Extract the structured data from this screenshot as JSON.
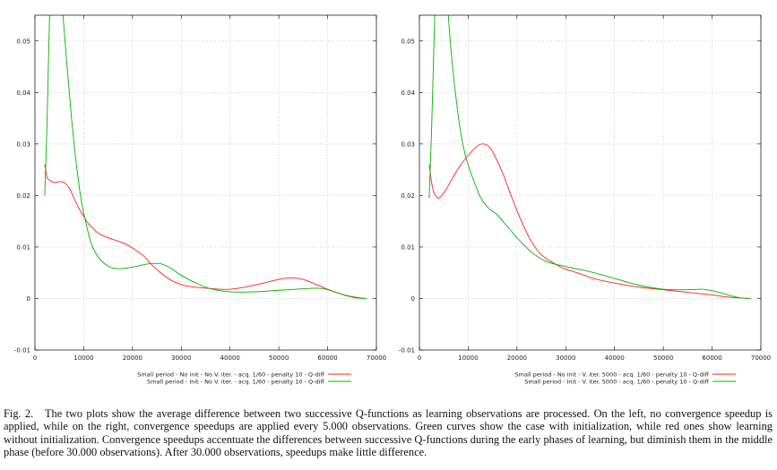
{
  "figure": {
    "caption_label": "Fig. 2.",
    "caption_text": "The two plots show the average difference between two successive Q-functions as learning observations are processed. On the left, no convergence speedup is applied, while on the right, convergence speedups are applied every 5.000 observations. Green curves show the case with initialization, while red ones show learning without initialization. Convergence speedups accentuate the differences between successive Q-functions during the early phases of learning, but diminish them in the middle phase (before 30.000 observations). After 30.000 observations, speedups make little difference."
  },
  "colors": {
    "red": "#ff1f1f",
    "green": "#00b400",
    "grid": "#b8b8b8",
    "axis": "#000000"
  },
  "chart_data": [
    {
      "type": "line",
      "title": "",
      "xlabel": "",
      "ylabel": "",
      "xlim": [
        0,
        70000
      ],
      "ylim": [
        -0.01,
        0.055
      ],
      "xticks": [
        0,
        10000,
        20000,
        30000,
        40000,
        50000,
        60000,
        70000
      ],
      "yticks": [
        -0.01,
        0,
        0.01,
        0.02,
        0.03,
        0.04,
        0.05
      ],
      "xtick_labels": [
        "0",
        "10000",
        "20000",
        "30000",
        "40000",
        "50000",
        "60000",
        "70000"
      ],
      "ytick_labels": [
        "-0.01",
        "0",
        "0.01",
        "0.02",
        "0.03",
        "0.04",
        "0.05"
      ],
      "grid": true,
      "legend_position": "bottom-right",
      "series": [
        {
          "name": "Small period - No init - No V. iter. - acq. 1/60 - penalty 10 - Q-diff",
          "color": "red",
          "x": [
            2000,
            2500,
            3000,
            4000,
            5000,
            6000,
            7000,
            8000,
            9000,
            10000,
            11000,
            13000,
            15000,
            18000,
            20000,
            22000,
            24000,
            26000,
            28000,
            30000,
            32000,
            35000,
            38000,
            40000,
            43000,
            46000,
            49000,
            51000,
            53000,
            55000,
            57000,
            60000,
            63000,
            66000,
            68000
          ],
          "y": [
            0.026,
            0.0235,
            0.023,
            0.0225,
            0.0227,
            0.0225,
            0.0215,
            0.0195,
            0.0175,
            0.016,
            0.0145,
            0.0127,
            0.0118,
            0.0108,
            0.0098,
            0.0085,
            0.0065,
            0.0048,
            0.0035,
            0.0027,
            0.0023,
            0.002,
            0.0018,
            0.0018,
            0.0022,
            0.0028,
            0.0035,
            0.0039,
            0.004,
            0.0037,
            0.003,
            0.0018,
            0.0008,
            0.0002,
            0.0
          ]
        },
        {
          "name": "Small period - Init - No V. iter. - acq. 1/60 - penalty 10 - Q-diff",
          "color": "green",
          "x": [
            2000,
            2500,
            3000,
            3500,
            4500,
            5500,
            6500,
            7500,
            8500,
            9500,
            10500,
            11500,
            13000,
            15000,
            17000,
            20000,
            22000,
            24000,
            26000,
            28000,
            30000,
            33000,
            36000,
            40000,
            45000,
            50000,
            55000,
            58000,
            60000,
            62000,
            64000,
            66000,
            68000
          ],
          "y": [
            0.02,
            0.035,
            0.055,
            0.07,
            0.072,
            0.058,
            0.046,
            0.035,
            0.026,
            0.019,
            0.0145,
            0.0108,
            0.008,
            0.0063,
            0.0058,
            0.0061,
            0.0065,
            0.0068,
            0.0067,
            0.0058,
            0.0045,
            0.003,
            0.0019,
            0.0013,
            0.0013,
            0.0016,
            0.0019,
            0.002,
            0.0017,
            0.0011,
            0.0005,
            0.0001,
            0.0
          ]
        }
      ]
    },
    {
      "type": "line",
      "title": "",
      "xlabel": "",
      "ylabel": "",
      "xlim": [
        0,
        70000
      ],
      "ylim": [
        -0.01,
        0.055
      ],
      "xticks": [
        0,
        10000,
        20000,
        30000,
        40000,
        50000,
        60000,
        70000
      ],
      "yticks": [
        -0.01,
        0,
        0.01,
        0.02,
        0.03,
        0.04,
        0.05
      ],
      "xtick_labels": [
        "0",
        "10000",
        "20000",
        "30000",
        "40000",
        "50000",
        "60000",
        "70000"
      ],
      "ytick_labels": [
        "-0.01",
        "0",
        "0.01",
        "0.02",
        "0.03",
        "0.04",
        "0.05"
      ],
      "grid": true,
      "legend_position": "bottom-right",
      "series": [
        {
          "name": "Small period - No init - V. iter. 5000 - acq. 1/60 - penalty 10 - Q-diff",
          "color": "red",
          "x": [
            2000,
            2500,
            3000,
            3500,
            4000,
            5000,
            6000,
            8000,
            10000,
            12000,
            13000,
            14000,
            15000,
            17000,
            19000,
            21000,
            23000,
            25000,
            28000,
            30000,
            33000,
            36000,
            40000,
            45000,
            50000,
            55000,
            60000,
            63000,
            66000,
            68000
          ],
          "y": [
            0.026,
            0.0225,
            0.0205,
            0.0197,
            0.0195,
            0.0205,
            0.022,
            0.0253,
            0.0278,
            0.0297,
            0.03,
            0.0297,
            0.0285,
            0.0245,
            0.0195,
            0.0148,
            0.011,
            0.0085,
            0.0066,
            0.0057,
            0.0048,
            0.0038,
            0.003,
            0.0022,
            0.0017,
            0.0012,
            0.0007,
            0.0003,
            0.0001,
            0.0
          ]
        },
        {
          "name": "Small period - Init - V. iter. 5000 - acq. 1/60 - penalty 10 - Q-diff",
          "color": "green",
          "x": [
            2000,
            2500,
            3000,
            3500,
            4500,
            5500,
            6500,
            7500,
            8500,
            9500,
            10500,
            11500,
            12500,
            14000,
            16000,
            18000,
            20000,
            23000,
            26000,
            30000,
            35000,
            40000,
            45000,
            50000,
            55000,
            58000,
            61000,
            64000,
            66000,
            68000
          ],
          "y": [
            0.0195,
            0.033,
            0.05,
            0.064,
            0.07,
            0.06,
            0.048,
            0.039,
            0.032,
            0.0275,
            0.0245,
            0.022,
            0.0197,
            0.0177,
            0.0162,
            0.014,
            0.0118,
            0.009,
            0.0072,
            0.0062,
            0.0052,
            0.0039,
            0.0026,
            0.0018,
            0.0017,
            0.0018,
            0.0013,
            0.0005,
            0.0001,
            0.0
          ]
        }
      ]
    }
  ]
}
